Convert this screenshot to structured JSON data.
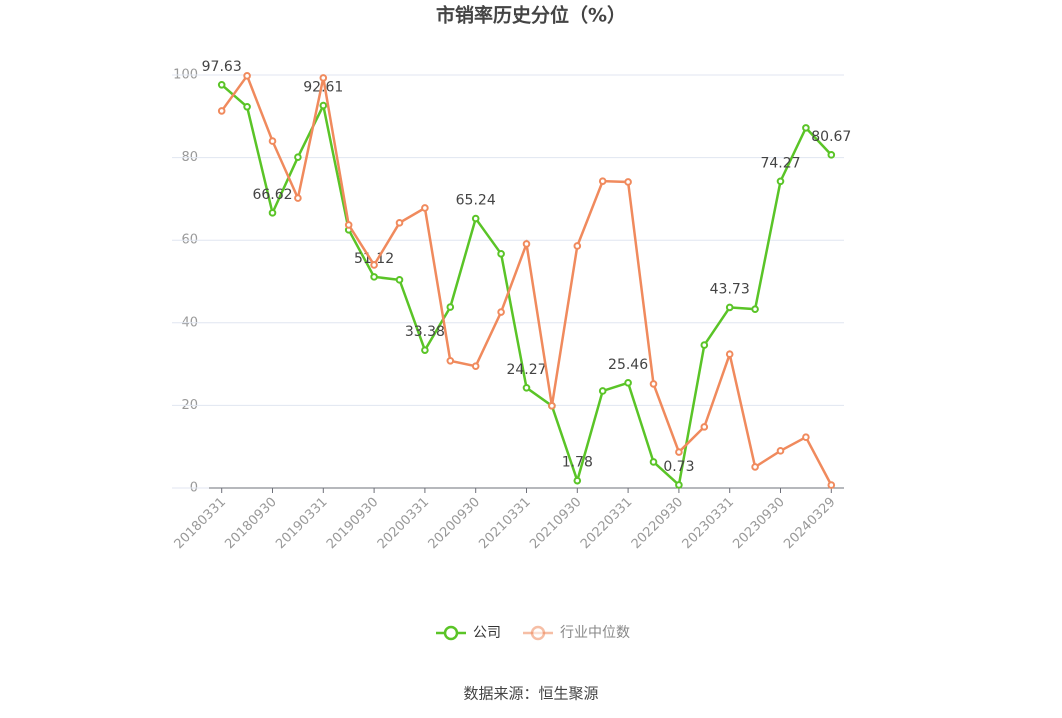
{
  "chart_data": {
    "type": "line",
    "title": "市销率历史分位（%）",
    "categories": [
      "20180331",
      null,
      "20180930",
      null,
      "20190331",
      null,
      "20190930",
      null,
      "20200331",
      null,
      "20200930",
      null,
      "20210331",
      null,
      "20210930",
      null,
      "20220331",
      null,
      "20220930",
      null,
      "20230331",
      null,
      "20230930",
      null,
      "20240329"
    ],
    "series": [
      {
        "name": "公司",
        "color": "#5ac427",
        "labeled_points": [
          0,
          2,
          4,
          6,
          8,
          10,
          12,
          14,
          16,
          18,
          20,
          22,
          24
        ],
        "values": [
          97.63,
          92.3,
          66.62,
          80.1,
          92.61,
          62.5,
          51.12,
          50.4,
          33.38,
          43.8,
          65.24,
          56.7,
          24.27,
          19.9,
          1.78,
          23.5,
          25.46,
          6.3,
          0.73,
          34.6,
          43.73,
          43.3,
          74.27,
          87.2,
          80.67
        ]
      },
      {
        "name": "行业中位数",
        "color": "#f08a5d",
        "values": [
          91.3,
          99.8,
          84.0,
          70.2,
          99.3,
          63.7,
          54.0,
          64.2,
          67.8,
          30.8,
          29.5,
          42.6,
          59.1,
          19.9,
          58.6,
          74.3,
          74.1,
          25.2,
          8.7,
          14.8,
          32.4,
          5.1,
          9.0,
          12.3,
          0.7
        ]
      }
    ],
    "ylim": [
      0,
      100
    ],
    "yticks": [
      0,
      20,
      40,
      60,
      80,
      100
    ],
    "grid": true,
    "source": "数据来源：恒生聚源"
  }
}
